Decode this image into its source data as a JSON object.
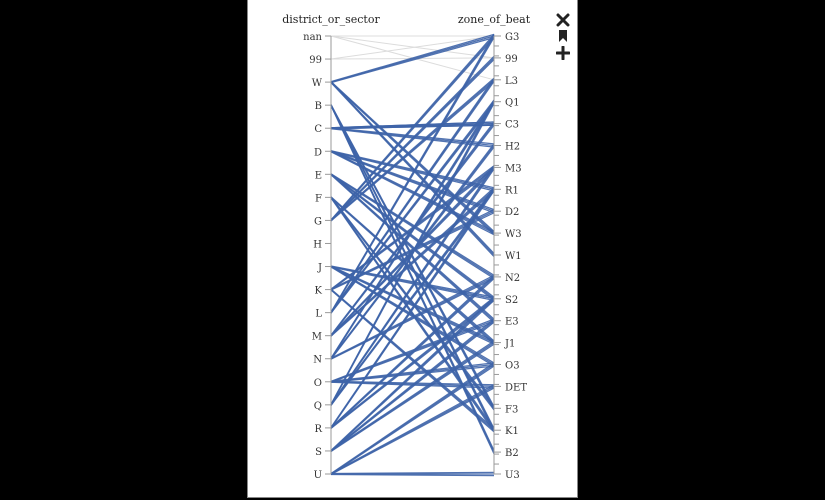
{
  "toolbar": {
    "close_icon": "close-icon",
    "bookmark_icon": "bookmark-icon",
    "add_icon": "plus-icon"
  },
  "chart_data": {
    "type": "parallel-coordinates",
    "dimensions": [
      "district_or_sector",
      "zone_of_beat"
    ],
    "left_categories": [
      "nan",
      "99",
      "W",
      "B",
      "C",
      "D",
      "E",
      "F",
      "G",
      "H",
      "J",
      "K",
      "L",
      "M",
      "N",
      "O",
      "Q",
      "R",
      "S",
      "U"
    ],
    "right_categories": [
      "G3",
      "99",
      "L3",
      "Q1",
      "C3",
      "H2",
      "M3",
      "R1",
      "D2",
      "W3",
      "W1",
      "N2",
      "S2",
      "E3",
      "J1",
      "O3",
      "DET",
      "F3",
      "K1",
      "B2",
      "U3"
    ],
    "right_tick_count": 45,
    "line_color": "#3e64a8",
    "faint_line_color": "#dcdcdc",
    "axis_color": "#9a9a9a",
    "faint_links": [
      [
        "nan",
        "G3"
      ],
      [
        "nan",
        "99"
      ],
      [
        "nan",
        "L3"
      ],
      [
        "99",
        "99"
      ],
      [
        "99",
        "G3"
      ],
      [
        "W",
        "G3"
      ]
    ],
    "links": [
      [
        "W",
        "G3"
      ],
      [
        "W",
        "W3"
      ],
      [
        "W",
        "W1"
      ],
      [
        "B",
        "B2"
      ],
      [
        "B",
        "K1"
      ],
      [
        "B",
        "F3"
      ],
      [
        "C",
        "C3"
      ],
      [
        "C",
        "H2"
      ],
      [
        "C",
        "C3"
      ],
      [
        "D",
        "D2"
      ],
      [
        "D",
        "W3"
      ],
      [
        "D",
        "R1"
      ],
      [
        "E",
        "E3"
      ],
      [
        "E",
        "N2"
      ],
      [
        "E",
        "S2"
      ],
      [
        "F",
        "F3"
      ],
      [
        "F",
        "J1"
      ],
      [
        "F",
        "K1"
      ],
      [
        "G",
        "G3"
      ],
      [
        "G",
        "99"
      ],
      [
        "G",
        "L3"
      ],
      [
        "J",
        "J1"
      ],
      [
        "J",
        "S2"
      ],
      [
        "J",
        "O3"
      ],
      [
        "K",
        "K1"
      ],
      [
        "K",
        "D2"
      ],
      [
        "K",
        "M3"
      ],
      [
        "L",
        "L3"
      ],
      [
        "L",
        "Q1"
      ],
      [
        "L",
        "G3"
      ],
      [
        "M",
        "M3"
      ],
      [
        "M",
        "R1"
      ],
      [
        "M",
        "C3"
      ],
      [
        "N",
        "N2"
      ],
      [
        "N",
        "Q1"
      ],
      [
        "N",
        "H2"
      ],
      [
        "O",
        "O3"
      ],
      [
        "O",
        "DET"
      ],
      [
        "O",
        "E3"
      ],
      [
        "Q",
        "Q1"
      ],
      [
        "Q",
        "M3"
      ],
      [
        "Q",
        "R1"
      ],
      [
        "R",
        "R1"
      ],
      [
        "R",
        "N2"
      ],
      [
        "R",
        "S2"
      ],
      [
        "S",
        "S2"
      ],
      [
        "S",
        "E3"
      ],
      [
        "S",
        "J1"
      ],
      [
        "U",
        "U3"
      ],
      [
        "U",
        "DET"
      ],
      [
        "U",
        "O3"
      ]
    ]
  }
}
